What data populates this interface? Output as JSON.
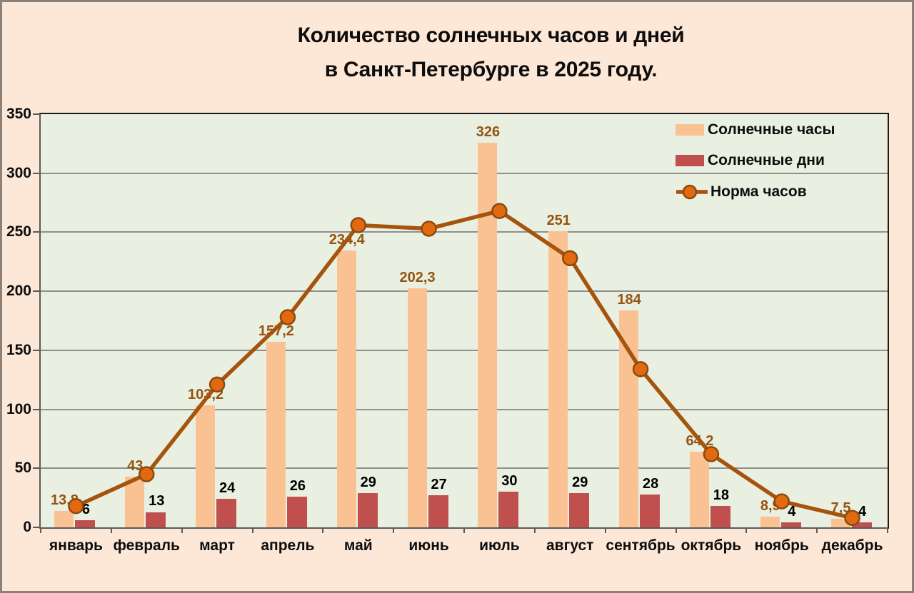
{
  "title": {
    "line1": "Количество солнечных часов и дней",
    "line2": "в Санкт-Петербурге в 2025 году."
  },
  "colors": {
    "background": "#fde8d8",
    "plot_background": "#eaf0e1",
    "frame": "#8b8178",
    "grid": "#7f7f7f",
    "axis": "#595959",
    "hours_bar": "#fac292",
    "days_bar": "#bf504d",
    "line": "#a4540c",
    "marker_fill": "#e2690f",
    "marker_stroke": "#8a4a10",
    "hours_label": "#945410",
    "days_label": "#000000"
  },
  "y_axis": {
    "min": 0,
    "max": 350,
    "step": 50,
    "ticks": [
      "350",
      "300",
      "250",
      "200",
      "150",
      "100",
      "50",
      "0"
    ]
  },
  "legend": {
    "items": [
      {
        "label": "Солнечные часы",
        "swatch": "hours_bar"
      },
      {
        "label": "Солнечные дни",
        "swatch": "days_bar"
      },
      {
        "label": "Норма часов",
        "swatch": "line_marker"
      }
    ]
  },
  "chart_data": {
    "type": "bar+line",
    "categories": [
      "январь",
      "февраль",
      "март",
      "апрель",
      "май",
      "июнь",
      "июль",
      "август",
      "сентябрь",
      "октябрь",
      "ноябрь",
      "декабрь"
    ],
    "series": [
      {
        "name": "Солнечные часы",
        "type": "bar",
        "values": [
          13.8,
          43,
          103.2,
          157.2,
          234.4,
          202.3,
          326,
          251,
          184,
          64.2,
          8.9,
          7.5
        ],
        "labels": [
          "13,8",
          "43",
          "103,2",
          "157,2",
          "234,4",
          "202,3",
          "326",
          "251",
          "184",
          "64,2",
          "8,9",
          "7,5"
        ]
      },
      {
        "name": "Солнечные дни",
        "type": "bar",
        "values": [
          6,
          13,
          24,
          26,
          29,
          27,
          30,
          29,
          28,
          18,
          4,
          4
        ],
        "labels": [
          "6",
          "13",
          "24",
          "26",
          "29",
          "27",
          "30",
          "29",
          "28",
          "18",
          "4",
          "4"
        ]
      },
      {
        "name": "Норма часов",
        "type": "line",
        "values": [
          18,
          45,
          121,
          178,
          256,
          253,
          268,
          228,
          134,
          62,
          22,
          8
        ]
      }
    ],
    "ylim": [
      0,
      350
    ],
    "ytick_step": 50,
    "grid": true,
    "legend_position": "top-right-inside"
  }
}
